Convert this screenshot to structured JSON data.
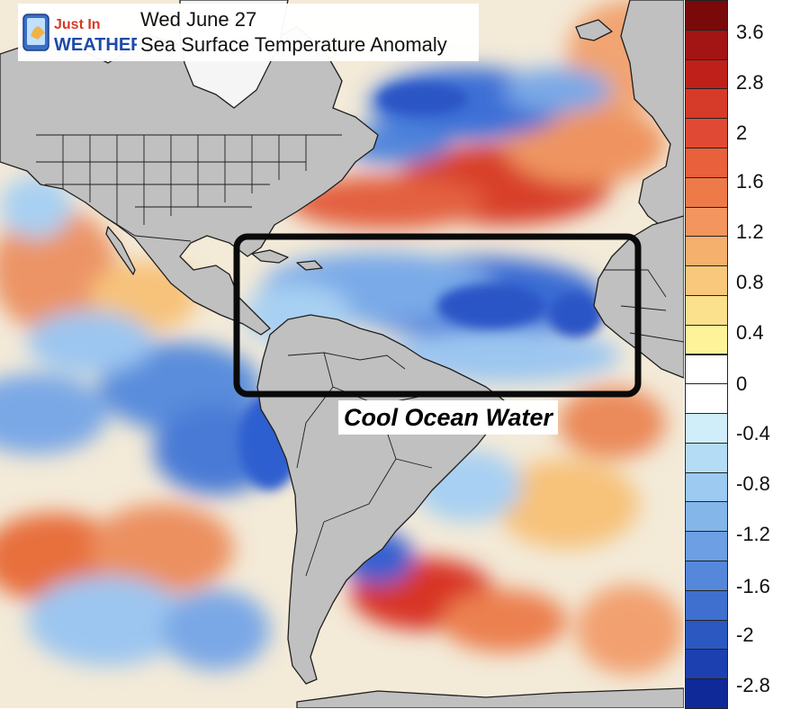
{
  "header": {
    "logo_line1": "Just In",
    "logo_line2": "WEATHER",
    "date": "Wed June 27",
    "title": "Sea Surface Temperature Anomaly"
  },
  "callout": {
    "label": "Cool Ocean Water"
  },
  "legend": {
    "ticks": [
      "3.6",
      "2.8",
      "2",
      "1.6",
      "1.2",
      "0.8",
      "0.4",
      "0",
      "-0.4",
      "-0.8",
      "-1.2",
      "-1.6",
      "-2",
      "-2.8"
    ],
    "colors": [
      "#7a0a0a",
      "#a31414",
      "#c0201a",
      "#d63a28",
      "#e04a34",
      "#e8603c",
      "#ee7a4a",
      "#f2955e",
      "#f6b06e",
      "#f9c87c",
      "#fbe08e",
      "#fff39a",
      "#ffffff",
      "#ffffff",
      "#cfeefa",
      "#b5dcf5",
      "#9ccaf0",
      "#84b6ea",
      "#6c9fe3",
      "#5588da",
      "#3f70d0",
      "#2c58c2",
      "#1d40b0",
      "#0f2a98"
    ]
  },
  "colors": {
    "land": "#c0c0c0",
    "border": "#1e1e1e",
    "box": "#0a0a0a",
    "warm": "#d93a2a",
    "cool": "#2f5fd0",
    "neutral": "#f4f0e6"
  }
}
